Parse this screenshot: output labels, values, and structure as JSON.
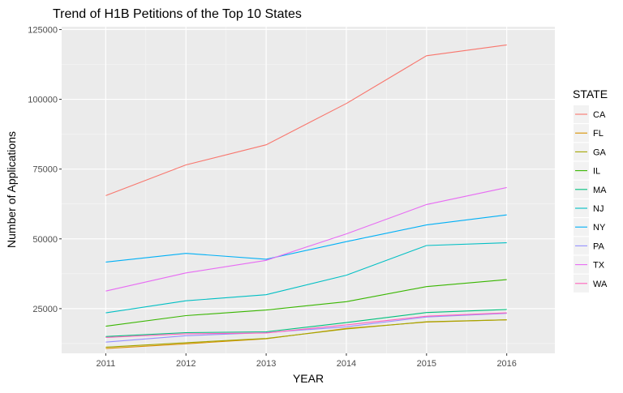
{
  "chart_data": {
    "type": "line",
    "title": "Trend of H1B Petitions of the Top 10 States",
    "xlabel": "YEAR",
    "ylabel": "Number of Applications",
    "x": [
      2011,
      2012,
      2013,
      2014,
      2015,
      2016
    ],
    "x_ticks": [
      "2011",
      "2012",
      "2013",
      "2014",
      "2015",
      "2016"
    ],
    "xlim": [
      2010.45,
      2016.6
    ],
    "ylim": [
      9000,
      126000
    ],
    "y_ticks": [
      25000,
      50000,
      75000,
      100000,
      125000
    ],
    "y_tick_labels": [
      "25000",
      "50000",
      "75000",
      "100000",
      "125000"
    ],
    "grid": true,
    "legend": {
      "title": "STATE",
      "position": "right"
    },
    "series": [
      {
        "name": "CA",
        "color": "#F8766D",
        "values": [
          65500,
          76500,
          83700,
          98500,
          115600,
          119500
        ]
      },
      {
        "name": "FL",
        "color": "#D89000",
        "values": [
          10700,
          12400,
          14200,
          17900,
          20200,
          21000
        ]
      },
      {
        "name": "GA",
        "color": "#A3A500",
        "values": [
          11200,
          12800,
          14300,
          17700,
          20300,
          21000
        ]
      },
      {
        "name": "IL",
        "color": "#39B600",
        "values": [
          18700,
          22500,
          24500,
          27500,
          32900,
          35400
        ]
      },
      {
        "name": "MA",
        "color": "#00BF7D",
        "values": [
          15000,
          16400,
          16700,
          20000,
          23600,
          24700
        ]
      },
      {
        "name": "NJ",
        "color": "#00BFC4",
        "values": [
          23500,
          27800,
          30000,
          37000,
          47600,
          48600
        ]
      },
      {
        "name": "NY",
        "color": "#00B0F6",
        "values": [
          41700,
          44800,
          42700,
          49000,
          55000,
          58600
        ]
      },
      {
        "name": "PA",
        "color": "#9590FF",
        "values": [
          13000,
          15300,
          16400,
          18500,
          22000,
          23300
        ]
      },
      {
        "name": "TX",
        "color": "#E76BF3",
        "values": [
          31300,
          37800,
          42300,
          51800,
          62300,
          68400
        ]
      },
      {
        "name": "WA",
        "color": "#FF62BC",
        "values": [
          14700,
          16000,
          16300,
          19200,
          22300,
          23500
        ]
      }
    ]
  }
}
